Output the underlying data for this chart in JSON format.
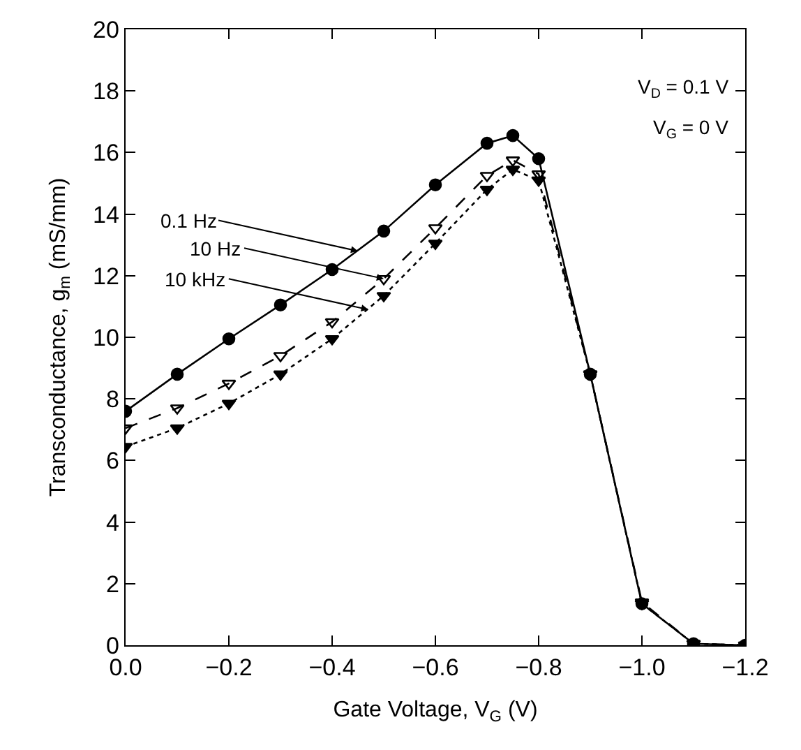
{
  "chart_data": {
    "type": "line",
    "xlabel": "Gate Voltage, V$_{G}$ (V)",
    "ylabel": "Transconductance, g$_{m}$ (mS/mm)",
    "x": [
      0.0,
      -0.1,
      -0.2,
      -0.3,
      -0.4,
      -0.5,
      -0.6,
      -0.7,
      -0.75,
      -0.8,
      -0.9,
      -1.0,
      -1.1,
      -1.2
    ],
    "series": [
      {
        "color": "#000000",
        "marker": "circle",
        "line_style": "solid",
        "values": [
          7.6,
          8.8,
          9.95,
          11.05,
          12.2,
          13.45,
          14.95,
          16.3,
          16.55,
          15.8,
          8.8,
          1.35,
          0.05,
          0.0
        ]
      },
      {
        "color": "#000000",
        "marker": "triangle-open",
        "line_style": "dashed",
        "values": [
          7.05,
          7.7,
          8.5,
          9.4,
          10.5,
          11.9,
          13.55,
          15.25,
          15.75,
          15.3,
          8.8,
          1.4,
          0.05,
          0.0
        ]
      },
      {
        "color": "#000000",
        "marker": "triangle",
        "line_style": "dotted",
        "values": [
          6.45,
          7.05,
          7.85,
          8.8,
          9.95,
          11.35,
          13.05,
          14.8,
          15.45,
          15.1,
          8.8,
          1.35,
          0.05,
          0.0
        ]
      }
    ],
    "annotations": [
      {
        "text": "0.1 Hz",
        "x": -0.45,
        "y": 12.8
      },
      {
        "text": "10 Hz",
        "x": -0.5,
        "y": 11.9
      },
      {
        "text": "10 kHz",
        "x": -0.47,
        "y": 10.9
      },
      "V$_{D}$ = 0.1 V",
      "V$_{G}$ = 0 V"
    ],
    "xlim": [
      0.0,
      -1.2
    ],
    "xticks": [
      {
        "value": 0.0,
        "label": "0.0"
      },
      {
        "value": -0.2,
        "label": "−0.2"
      },
      {
        "value": -0.4,
        "label": "−0.4"
      },
      {
        "value": -0.6,
        "label": "−0.6"
      },
      {
        "value": -0.8,
        "label": "−0.8"
      },
      {
        "value": -1.0,
        "label": "−1.0"
      },
      {
        "value": -1.2,
        "label": "−1.2"
      }
    ],
    "yticks": [
      0,
      2,
      4,
      6,
      8,
      10,
      12,
      14,
      16,
      18,
      20
    ],
    "ylim": [
      0,
      20
    ]
  }
}
